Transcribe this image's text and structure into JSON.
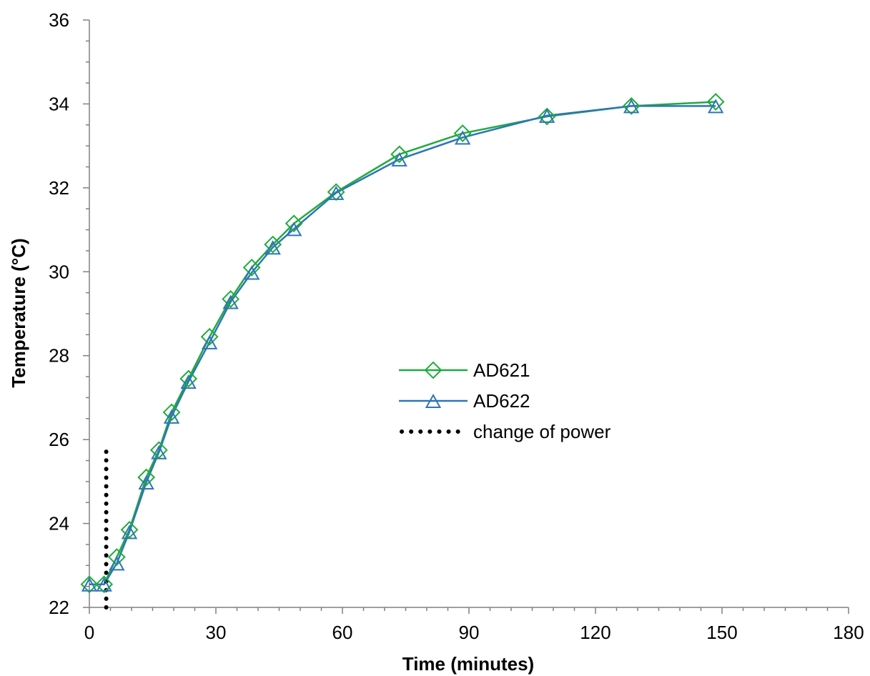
{
  "chart_data": {
    "type": "line",
    "title": "",
    "xlabel": "Time (minutes)",
    "ylabel": "Temperature (°C)",
    "xlim": [
      0,
      180
    ],
    "ylim": [
      22,
      36
    ],
    "x_ticks": [
      0,
      30,
      60,
      90,
      120,
      150,
      180
    ],
    "y_ticks": [
      22,
      24,
      26,
      28,
      30,
      32,
      34,
      36
    ],
    "x_tick_labels": [
      "0",
      "30",
      "60",
      "90",
      "120",
      "150",
      "180"
    ],
    "y_tick_labels": [
      "22",
      "24",
      "26",
      "28",
      "30",
      "32",
      "34",
      "36"
    ],
    "grid": false,
    "legend_position": "center-right",
    "series": [
      {
        "name": "AD621",
        "color": "#1fac3c",
        "marker": "diamond",
        "x": [
          0,
          3.5,
          6.5,
          9.5,
          13.5,
          16.5,
          19.5,
          23.5,
          28.5,
          33.5,
          38.5,
          43.5,
          48.5,
          58.5,
          73.5,
          88.5,
          108.5,
          128.5,
          148.5
        ],
        "y": [
          22.55,
          22.55,
          23.2,
          23.85,
          25.1,
          25.75,
          26.65,
          27.45,
          28.45,
          29.35,
          30.1,
          30.65,
          31.15,
          31.9,
          32.8,
          33.3,
          33.7,
          33.95,
          34.05
        ]
      },
      {
        "name": "AD622",
        "color": "#2e75b6",
        "marker": "triangle",
        "x": [
          0,
          3.5,
          6.5,
          9.5,
          13.5,
          16.5,
          19.5,
          23.5,
          28.5,
          33.5,
          38.5,
          43.5,
          48.5,
          58.5,
          73.5,
          88.5,
          108.5,
          128.5,
          148.5
        ],
        "y": [
          22.55,
          22.55,
          23.05,
          23.8,
          24.98,
          25.7,
          26.55,
          27.38,
          28.32,
          29.28,
          29.98,
          30.58,
          31.02,
          31.88,
          32.68,
          33.2,
          33.72,
          33.95,
          33.95
        ]
      },
      {
        "name": "change of power",
        "color": "#000000",
        "style": "dotted",
        "x": [
          4,
          4
        ],
        "y": [
          22,
          25.9
        ]
      }
    ]
  }
}
